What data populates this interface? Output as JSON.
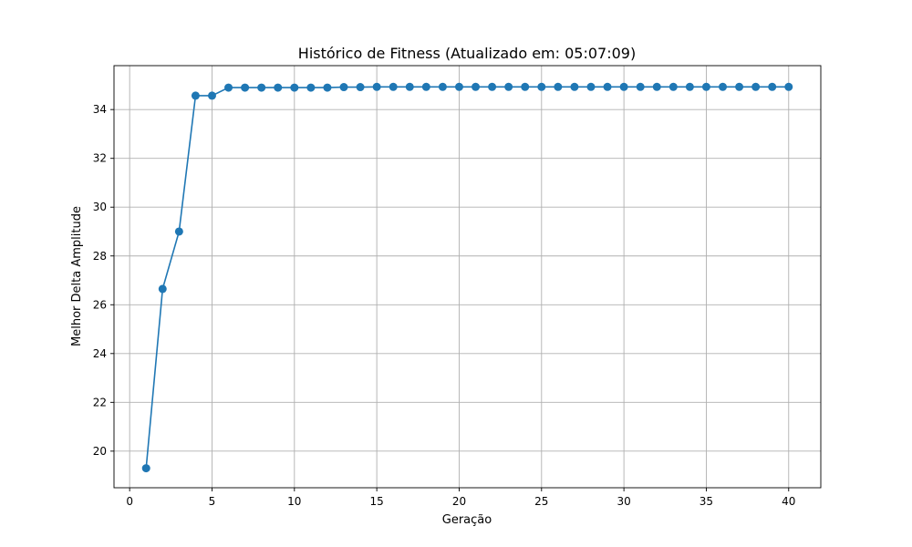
{
  "chart_data": {
    "type": "line",
    "title": "Histórico de Fitness (Atualizado em: 05:07:09)",
    "xlabel": "Geração",
    "ylabel": "Melhor Delta Amplitude",
    "xlim": [
      -0.95,
      41.95
    ],
    "ylim": [
      18.5,
      35.8
    ],
    "xticks": [
      0,
      5,
      10,
      15,
      20,
      25,
      30,
      35,
      40
    ],
    "yticks": [
      20,
      22,
      24,
      26,
      28,
      30,
      32,
      34
    ],
    "grid": true,
    "marker": "circle",
    "series": [
      {
        "color": "#1f77b4",
        "x": [
          1,
          2,
          3,
          4,
          5,
          6,
          7,
          8,
          9,
          10,
          11,
          12,
          13,
          14,
          15,
          16,
          17,
          18,
          19,
          20,
          21,
          22,
          23,
          24,
          25,
          26,
          27,
          28,
          29,
          30,
          31,
          32,
          33,
          34,
          35,
          36,
          37,
          38,
          39,
          40
        ],
        "y": [
          19.3,
          26.65,
          29.0,
          34.57,
          34.57,
          34.9,
          34.9,
          34.9,
          34.9,
          34.9,
          34.9,
          34.9,
          34.92,
          34.92,
          34.93,
          34.93,
          34.93,
          34.93,
          34.93,
          34.93,
          34.93,
          34.93,
          34.93,
          34.93,
          34.93,
          34.93,
          34.93,
          34.93,
          34.93,
          34.93,
          34.93,
          34.93,
          34.93,
          34.93,
          34.93,
          34.93,
          34.93,
          34.93,
          34.93,
          34.93
        ]
      }
    ]
  }
}
